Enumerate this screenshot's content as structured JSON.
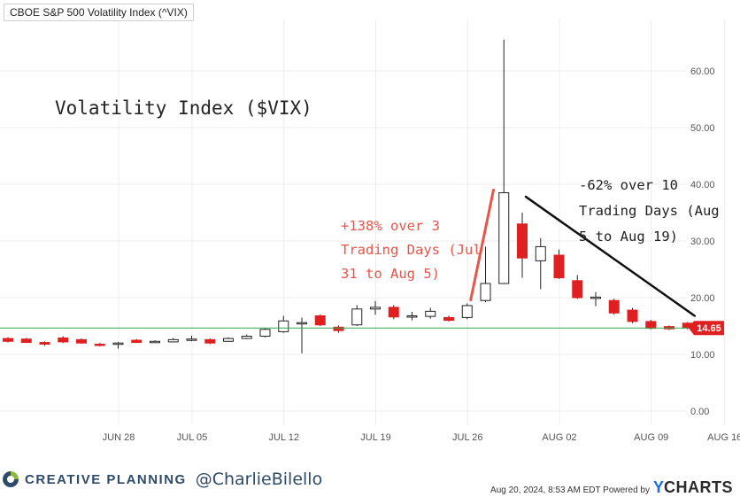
{
  "header": {
    "series_title": "CBOE S&P 500 Volatility Index (^VIX)"
  },
  "annotations": {
    "main_title": "Volatility Index ($VIX)",
    "rise_note": [
      "+138% over 3",
      "Trading Days (Jul",
      "31 to Aug 5)"
    ],
    "fall_note": [
      "-62% over 10",
      "Trading Days (Aug",
      "5 to Aug 19)"
    ]
  },
  "footer": {
    "brand": "CREATIVE PLANNING",
    "handle": "@CharlieBilello",
    "timestamp": "Aug 20, 2024, 8:53 AM EDT Powered by",
    "provider_y": "Y",
    "provider_rest": "CHARTS"
  },
  "colors": {
    "up": "#ffffff",
    "up_border": "#222222",
    "down": "#e02020",
    "wick": "#222222",
    "last_line": "#2fa84f",
    "last_badge": "#e02020",
    "rise_arrow": "#e8554a",
    "fall_arrow": "#111111",
    "rise_text": "#e8554a",
    "fall_text": "#222222",
    "grid": "#ececec"
  },
  "chart_data": {
    "type": "candlestick",
    "title": "CBOE S&P 500 Volatility Index (^VIX)",
    "x_tick_labels": [
      "JUN 28",
      "JUL 05",
      "JUL 12",
      "JUL 19",
      "JUL 26",
      "AUG 02",
      "AUG 09",
      "AUG 16"
    ],
    "y_tick_labels": [
      "0.00",
      "10.00",
      "20.00",
      "30.00",
      "40.00",
      "50.00",
      "60.00"
    ],
    "ylim": [
      0,
      63
    ],
    "last_value": 14.65,
    "last_value_label": "14.65",
    "candles": [
      {
        "date": "Jun 24",
        "open": 12.8,
        "high": 13.0,
        "low": 12.1,
        "close": 12.3
      },
      {
        "date": "Jun 25",
        "open": 12.7,
        "high": 12.9,
        "low": 12.0,
        "close": 12.1
      },
      {
        "date": "Jun 26",
        "open": 12.1,
        "high": 12.3,
        "low": 11.5,
        "close": 11.8
      },
      {
        "date": "Jun 27",
        "open": 12.9,
        "high": 13.2,
        "low": 12.0,
        "close": 12.2
      },
      {
        "date": "Jun 28",
        "open": 12.6,
        "high": 12.8,
        "low": 11.9,
        "close": 12.0
      },
      {
        "date": "Jul 01",
        "open": 11.8,
        "high": 12.0,
        "low": 11.4,
        "close": 11.6
      },
      {
        "date": "Jul 02",
        "open": 11.8,
        "high": 12.2,
        "low": 11.0,
        "close": 12.0
      },
      {
        "date": "Jul 03",
        "open": 12.5,
        "high": 12.7,
        "low": 12.0,
        "close": 12.1
      },
      {
        "date": "Jul 05",
        "open": 12.3,
        "high": 12.5,
        "low": 12.1,
        "close": 12.3
      },
      {
        "date": "Jul 08",
        "open": 12.2,
        "high": 12.9,
        "low": 12.1,
        "close": 12.6
      },
      {
        "date": "Jul 09",
        "open": 12.5,
        "high": 13.3,
        "low": 12.3,
        "close": 12.7
      },
      {
        "date": "Jul 10",
        "open": 12.6,
        "high": 12.8,
        "low": 11.8,
        "close": 12.0
      },
      {
        "date": "Jul 11",
        "open": 12.3,
        "high": 13.0,
        "low": 12.2,
        "close": 12.8
      },
      {
        "date": "Jul 12",
        "open": 12.8,
        "high": 13.5,
        "low": 12.7,
        "close": 13.2
      },
      {
        "date": "Jul 15",
        "open": 13.2,
        "high": 14.6,
        "low": 13.0,
        "close": 14.4
      },
      {
        "date": "Jul 16",
        "open": 14.0,
        "high": 16.8,
        "low": 13.8,
        "close": 15.9
      },
      {
        "date": "Jul 17",
        "open": 15.5,
        "high": 16.5,
        "low": 10.2,
        "close": 15.6
      },
      {
        "date": "Jul 18",
        "open": 16.8,
        "high": 17.0,
        "low": 15.0,
        "close": 15.2
      },
      {
        "date": "Jul 19",
        "open": 14.8,
        "high": 15.1,
        "low": 13.8,
        "close": 14.2
      },
      {
        "date": "Jul 22",
        "open": 15.2,
        "high": 18.7,
        "low": 15.0,
        "close": 18.0
      },
      {
        "date": "Jul 23",
        "open": 18.0,
        "high": 19.4,
        "low": 17.0,
        "close": 18.3
      },
      {
        "date": "Jul 24",
        "open": 18.3,
        "high": 18.7,
        "low": 16.2,
        "close": 16.6
      },
      {
        "date": "Jul 25",
        "open": 16.6,
        "high": 17.5,
        "low": 16.0,
        "close": 16.8
      },
      {
        "date": "Jul 26",
        "open": 16.7,
        "high": 18.2,
        "low": 16.3,
        "close": 17.6
      },
      {
        "date": "Jul 29",
        "open": 16.5,
        "high": 16.8,
        "low": 15.8,
        "close": 16.0
      },
      {
        "date": "Jul 30",
        "open": 16.5,
        "high": 19.0,
        "low": 16.2,
        "close": 18.6
      },
      {
        "date": "Jul 31",
        "open": 19.5,
        "high": 29.0,
        "low": 19.2,
        "close": 22.5
      },
      {
        "date": "Aug 01",
        "open": 22.5,
        "high": 65.5,
        "low": 22.4,
        "close": 38.5
      },
      {
        "date": "Aug 02",
        "open": 33.0,
        "high": 35.0,
        "low": 23.5,
        "close": 27.0
      },
      {
        "date": "Aug 05",
        "open": 26.5,
        "high": 30.5,
        "low": 21.5,
        "close": 29.0
      },
      {
        "date": "Aug 06",
        "open": 27.5,
        "high": 28.5,
        "low": 23.3,
        "close": 23.5
      },
      {
        "date": "Aug 07",
        "open": 23.0,
        "high": 24.0,
        "low": 19.8,
        "close": 20.0
      },
      {
        "date": "Aug 08",
        "open": 20.0,
        "high": 21.0,
        "low": 18.5,
        "close": 20.1
      },
      {
        "date": "Aug 09",
        "open": 19.5,
        "high": 19.8,
        "low": 17.0,
        "close": 17.3
      },
      {
        "date": "Aug 12",
        "open": 17.8,
        "high": 18.2,
        "low": 15.5,
        "close": 15.8
      },
      {
        "date": "Aug 13",
        "open": 15.8,
        "high": 16.1,
        "low": 14.4,
        "close": 14.6
      },
      {
        "date": "Aug 14",
        "open": 14.9,
        "high": 15.1,
        "low": 14.3,
        "close": 14.5
      },
      {
        "date": "Aug 15",
        "open": 15.5,
        "high": 15.7,
        "low": 14.4,
        "close": 14.65
      }
    ],
    "rise_arrow": {
      "from_date": "Jul 30",
      "from_value": 19.6,
      "to_date": "Jul 31",
      "to_value": 39.0
    },
    "fall_arrow": {
      "from_date": "Aug 02",
      "from_value": 37.8,
      "to_date": "Aug 15",
      "to_value": 16.8
    }
  }
}
